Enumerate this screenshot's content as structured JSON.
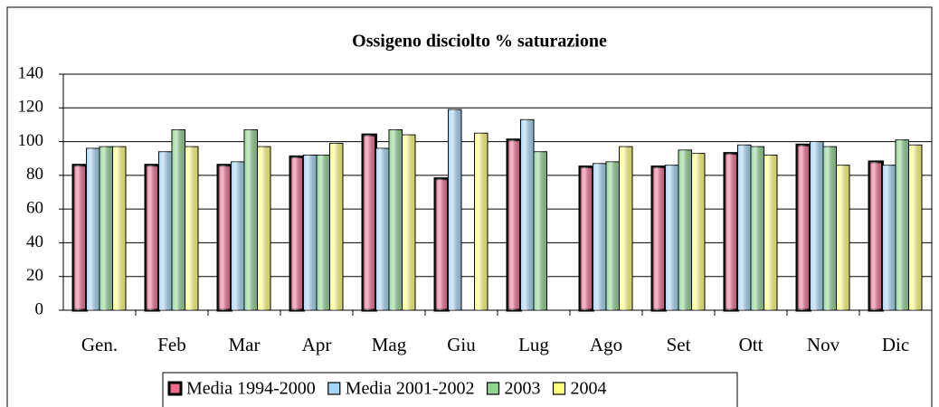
{
  "chart_data": {
    "type": "bar",
    "title": "Ossigeno disciolto % saturazione",
    "categories": [
      "Gen.",
      "Feb",
      "Mar",
      "Apr",
      "Mag",
      "Giu",
      "Lug",
      "Ago",
      "Set",
      "Ott",
      "Nov",
      "Dic"
    ],
    "series": [
      {
        "name": "Media 1994-2000",
        "color": "#f06c8e",
        "values": [
          86,
          86,
          86,
          91,
          104,
          78,
          101,
          85,
          85,
          93,
          98,
          88
        ]
      },
      {
        "name": "Media 2001-2002",
        "color": "#a6d6f7",
        "values": [
          96,
          94,
          88,
          92,
          96,
          119,
          113,
          87,
          86,
          98,
          100,
          86
        ]
      },
      {
        "name": "2003",
        "color": "#8fd48f",
        "values": [
          97,
          107,
          107,
          92,
          107,
          null,
          94,
          88,
          95,
          97,
          97,
          101
        ]
      },
      {
        "name": "2004",
        "color": "#ffff80",
        "values": [
          97,
          97,
          97,
          99,
          104,
          105,
          null,
          97,
          93,
          92,
          86,
          98
        ]
      }
    ],
    "ylim": [
      0,
      140
    ],
    "yticks": [
      0,
      20,
      40,
      60,
      80,
      100,
      120,
      140
    ],
    "grid": true
  }
}
